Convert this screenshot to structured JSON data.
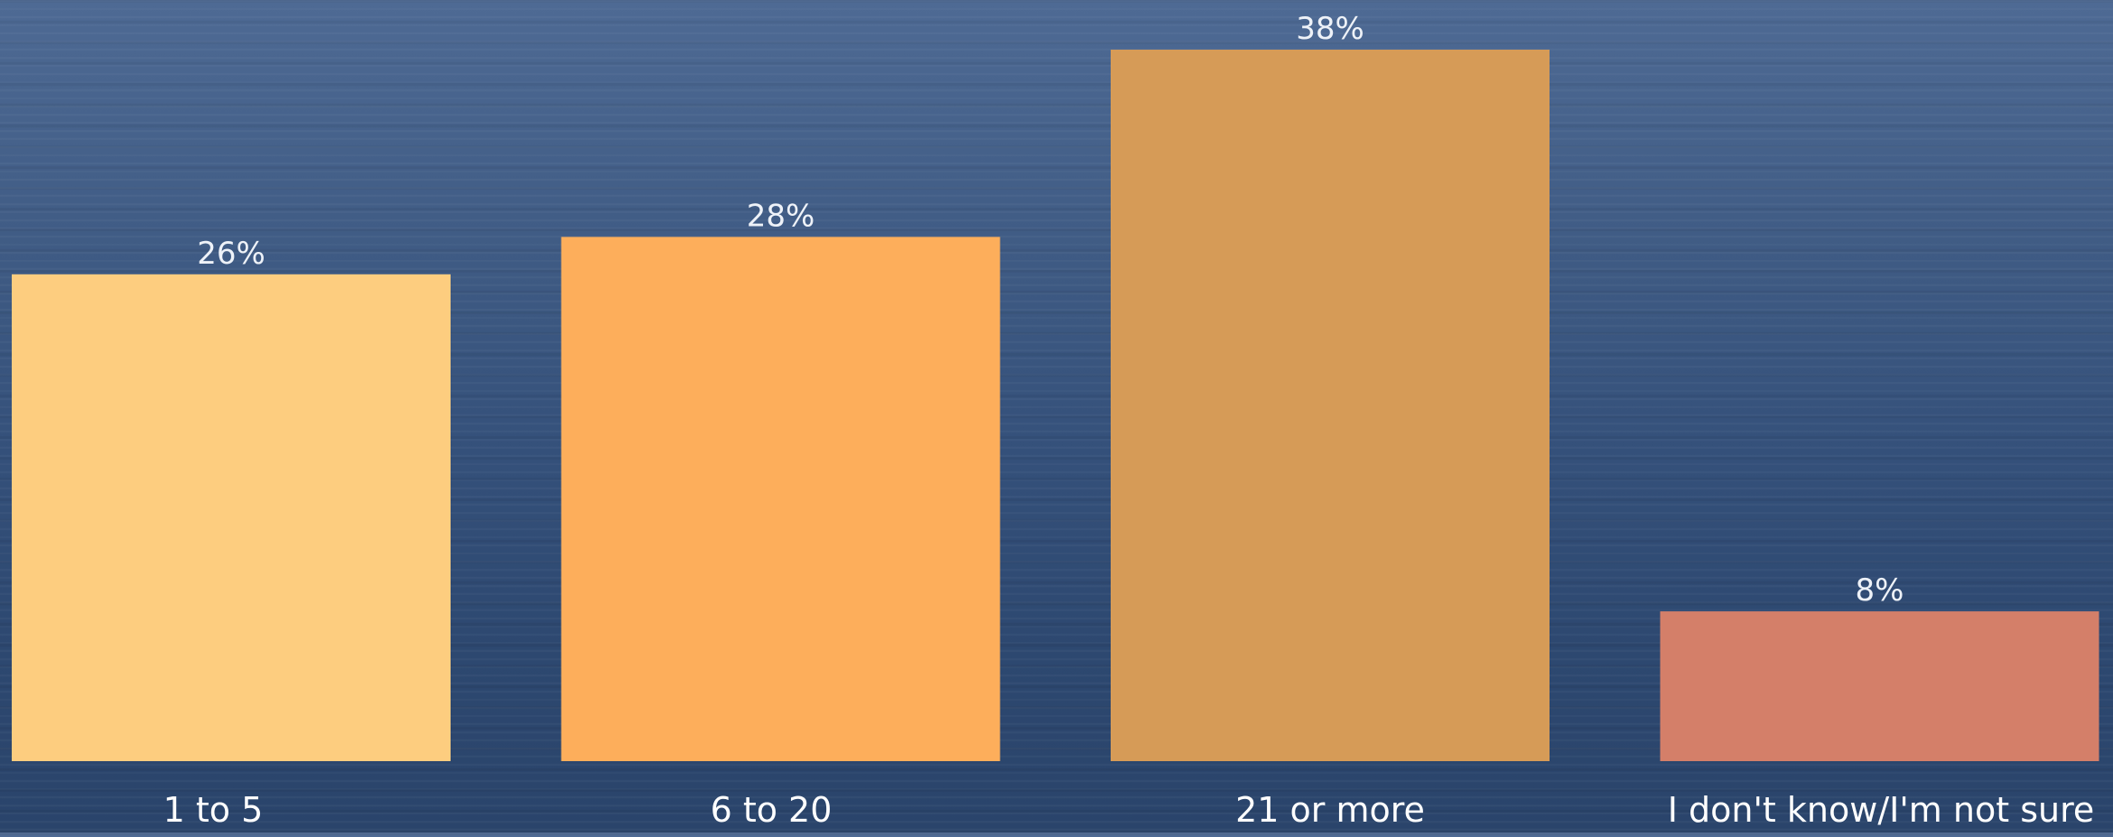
{
  "chart_data": {
    "type": "bar",
    "categories": [
      "1 to 5",
      "6 to 20",
      "21 or more",
      "I don't know/I'm not sure"
    ],
    "values": [
      26,
      28,
      38,
      8
    ],
    "data_labels": [
      "26%",
      "28%",
      "38%",
      "8%"
    ],
    "title": "",
    "xlabel": "",
    "ylabel": "",
    "ylim": [
      0,
      38
    ],
    "grid": false,
    "legend": "none",
    "colors": [
      "#fdcd7f",
      "#fdae5b",
      "#d69b57",
      "#d47f69"
    ]
  }
}
